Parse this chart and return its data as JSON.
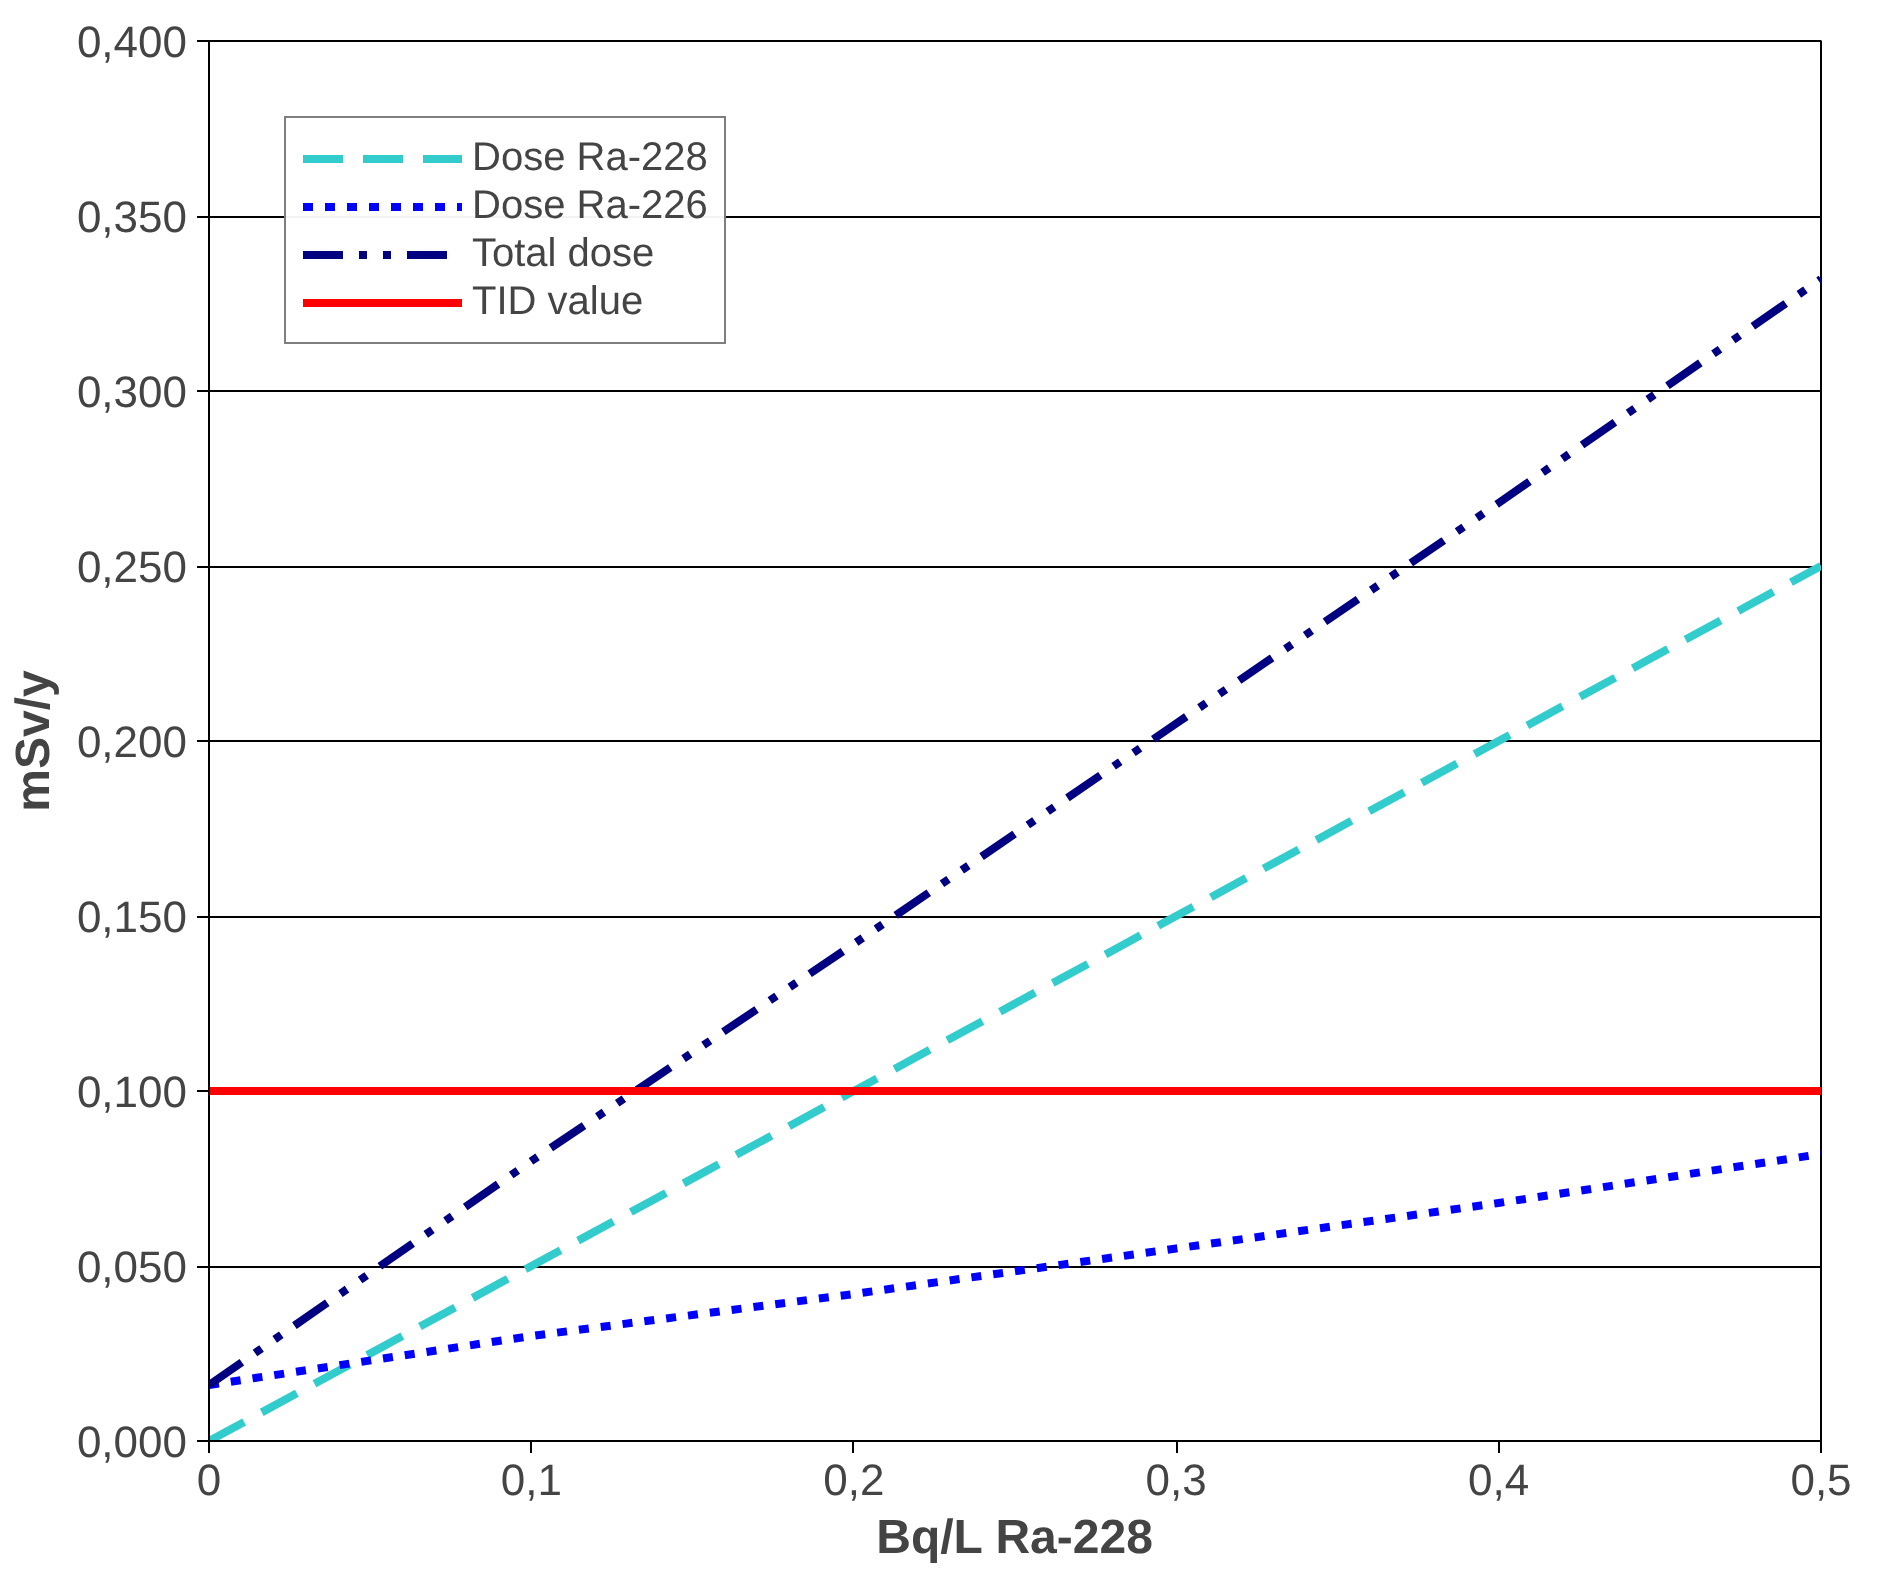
{
  "chart_data": {
    "type": "line",
    "xlabel": "Bq/L Ra-228",
    "ylabel": "mSv/y",
    "x": [
      0,
      0.1,
      0.2,
      0.3,
      0.4,
      0.5
    ],
    "series": [
      {
        "name": "Dose Ra-228",
        "color": "#33cccc",
        "line_style": "dashed",
        "values": [
          0,
          0.05,
          0.1,
          0.15,
          0.2,
          0.25
        ]
      },
      {
        "name": "Dose Ra-226",
        "color": "#0000ff",
        "line_style": "dotted",
        "values": [
          0.016,
          0.03,
          0.042,
          0.055,
          0.068,
          0.082
        ]
      },
      {
        "name": "Total dose",
        "color": "#000080",
        "line_style": "dashdot",
        "values": [
          0.016,
          0.08,
          0.142,
          0.205,
          0.268,
          0.332
        ]
      },
      {
        "name": "TID value",
        "color": "#ff0000",
        "line_style": "solid",
        "values": [
          0.1,
          0.1,
          0.1,
          0.1,
          0.1,
          0.1
        ]
      }
    ],
    "xlim": [
      0,
      0.5
    ],
    "ylim": [
      0,
      0.4
    ],
    "xticks": [
      0,
      {
        "value": 0.1,
        "label": "0,1"
      },
      {
        "value": 0.2,
        "label": "0,2"
      },
      {
        "value": 0.3,
        "label": "0,3"
      },
      {
        "value": 0.4,
        "label": "0,4"
      },
      {
        "value": 0.5,
        "label": "0,5"
      }
    ],
    "yticks": [
      {
        "value": 0,
        "label": "0,000"
      },
      {
        "value": 0.05,
        "label": "0,050"
      },
      {
        "value": 0.1,
        "label": "0,100"
      },
      {
        "value": 0.15,
        "label": "0,150"
      },
      {
        "value": 0.2,
        "label": "0,200"
      },
      {
        "value": 0.25,
        "label": "0,250"
      },
      {
        "value": 0.3,
        "label": "0,300"
      },
      {
        "value": 0.35,
        "label": "0,350"
      },
      {
        "value": 0.4,
        "label": "0,400"
      }
    ],
    "grid": "y",
    "legend": "top left",
    "marker": "none"
  }
}
